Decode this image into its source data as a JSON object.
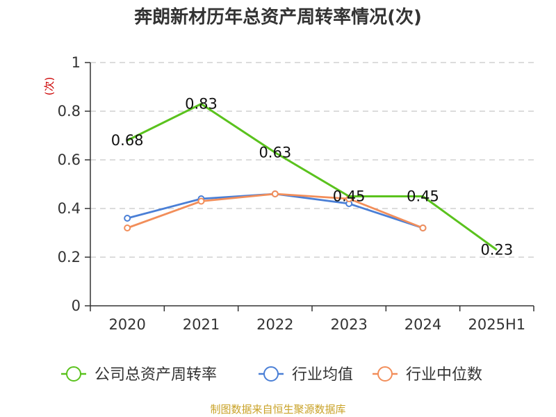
{
  "title": "奔朗新材历年总资产周转率情况(次)",
  "source": "制图数据来自恒生聚源数据库",
  "colors": {
    "source": "#c9a227",
    "ylabel": "#cc0000"
  },
  "chart_data": {
    "type": "line",
    "title": "奔朗新材历年总资产周转率情况(次)",
    "xlabel": "",
    "ylabel": "(次)",
    "ylim": [
      0,
      1
    ],
    "yticks": [
      "0",
      "0.2",
      "0.4",
      "0.6",
      "0.8",
      "1"
    ],
    "yticks_values": [
      0,
      0.2,
      0.4,
      0.6,
      0.8,
      1.0
    ],
    "categories": [
      "2020",
      "2021",
      "2022",
      "2023",
      "2024",
      "2025H1"
    ],
    "grid": true,
    "legend_position": "bottom",
    "series": [
      {
        "name": "公司总资产周转率",
        "color": "#5ac21d",
        "values": [
          0.68,
          0.83,
          0.63,
          0.45,
          0.45,
          0.23
        ],
        "labels": [
          "0.68",
          "0.83",
          "0.63",
          "0.45",
          "0.45",
          "0.23"
        ],
        "markers": false
      },
      {
        "name": "行业均值",
        "color": "#4a7fd6",
        "values": [
          0.36,
          0.44,
          0.46,
          0.42,
          0.32,
          null
        ],
        "markers": true
      },
      {
        "name": "行业中位数",
        "color": "#f28e5a",
        "values": [
          0.32,
          0.43,
          0.46,
          0.44,
          0.32,
          null
        ],
        "markers": true
      }
    ]
  }
}
